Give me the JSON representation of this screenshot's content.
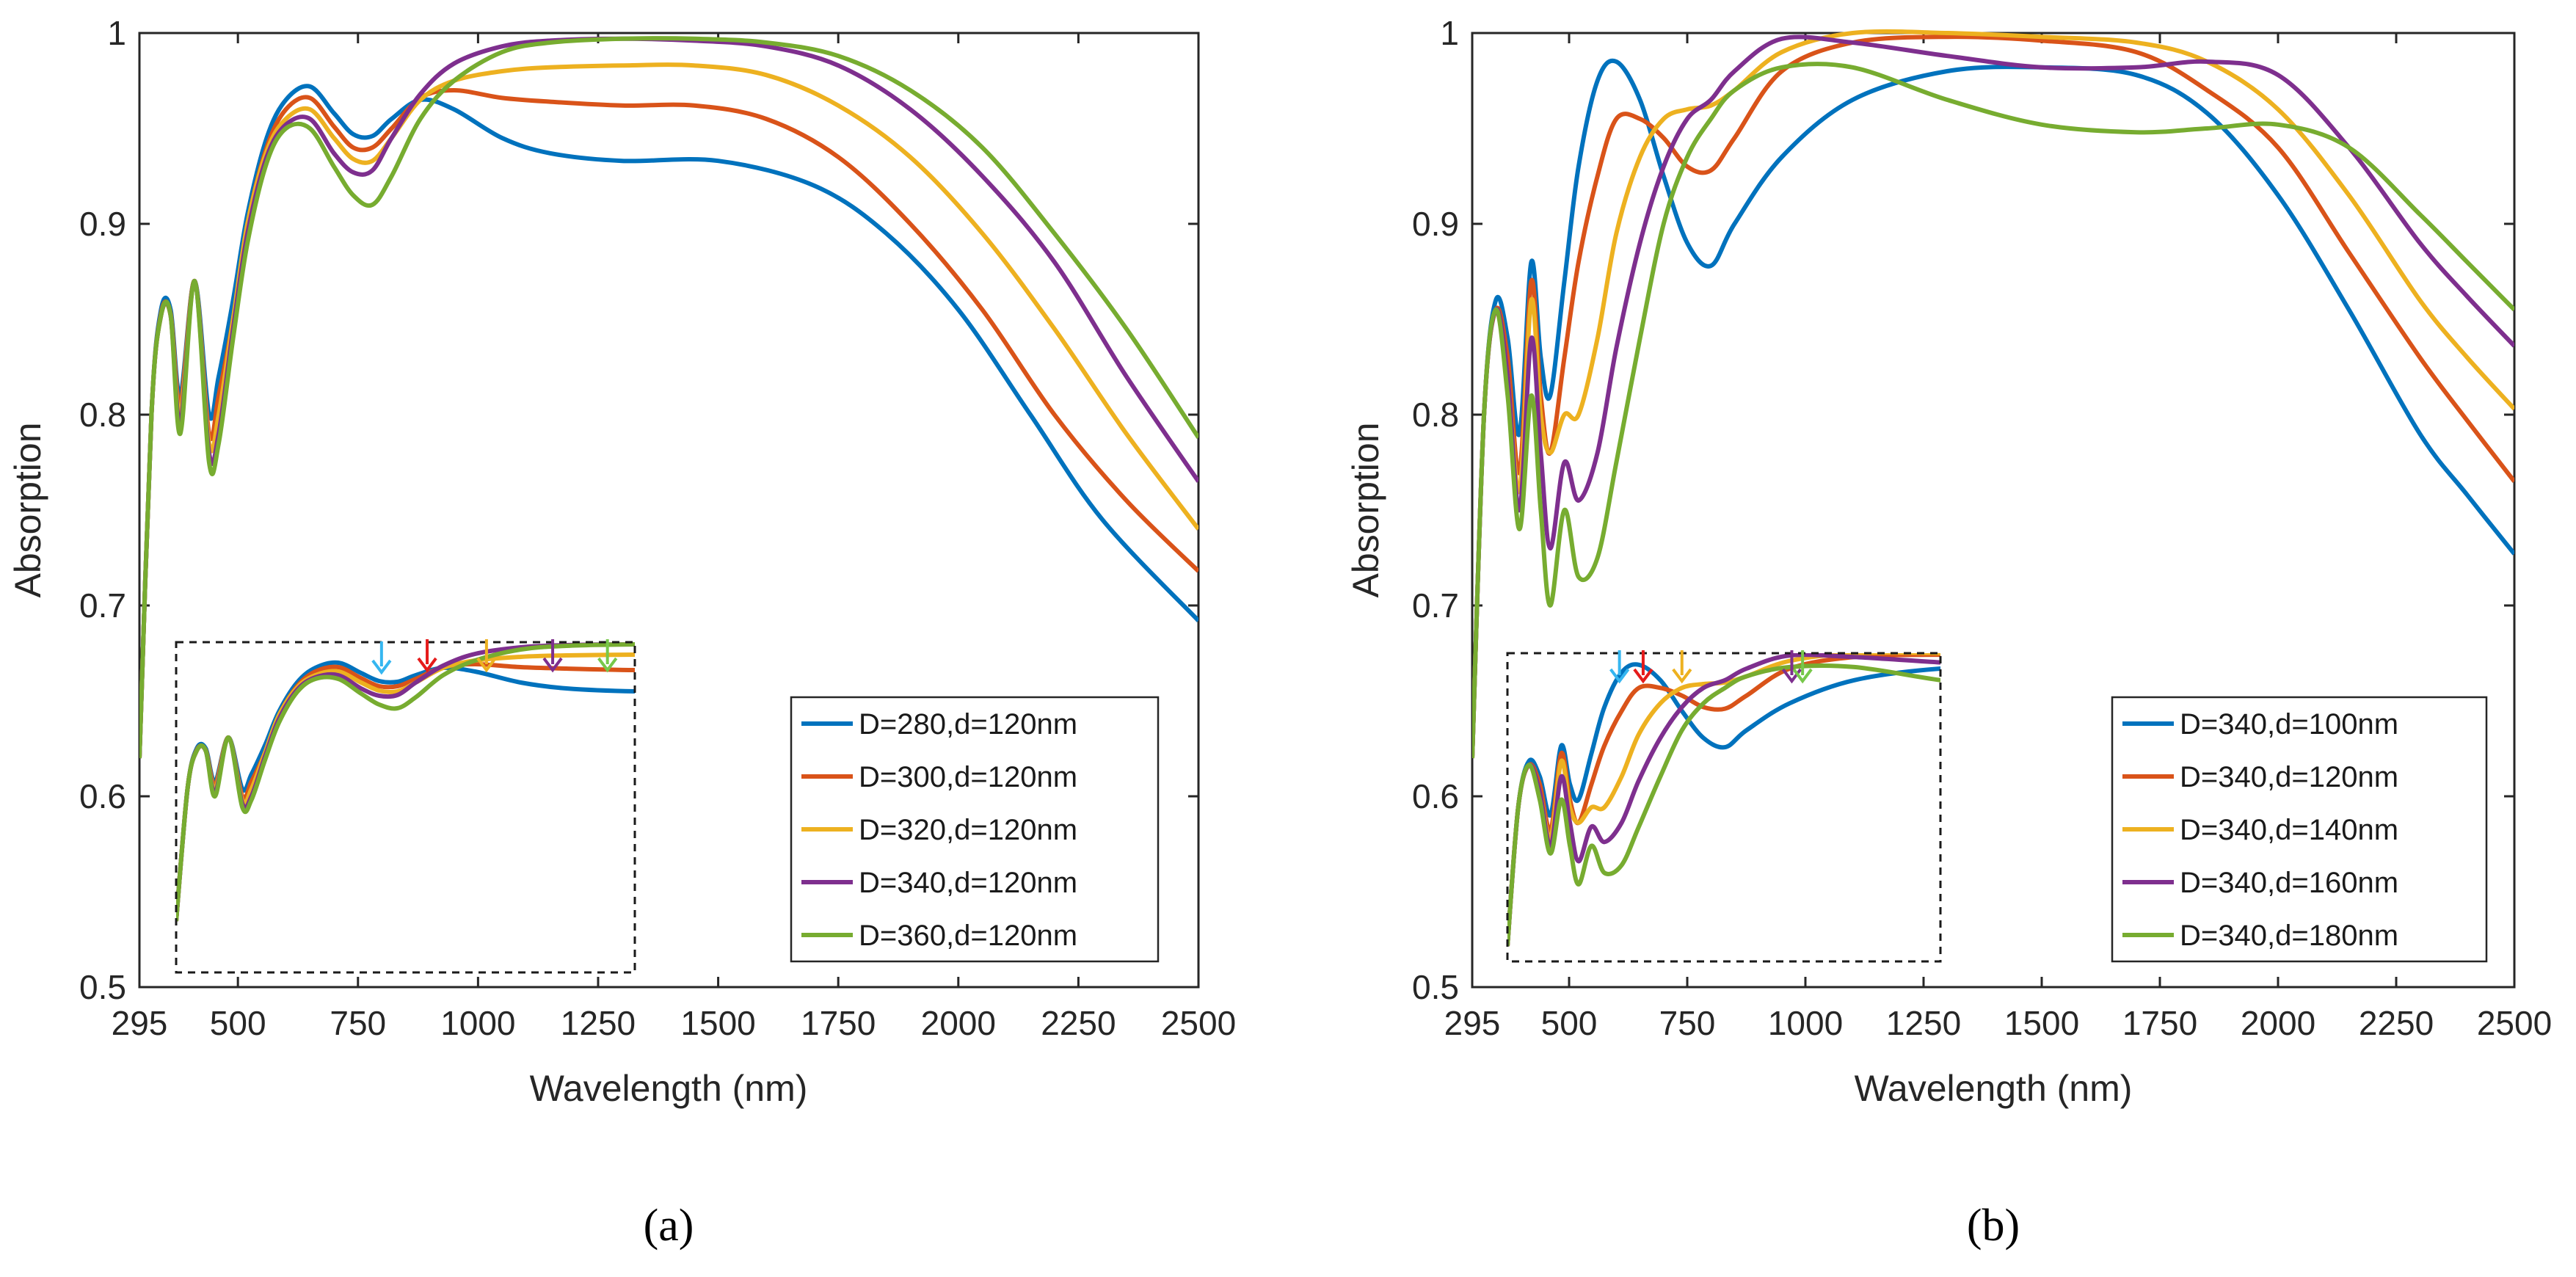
{
  "colors": [
    "#0072BD",
    "#D95319",
    "#EDB120",
    "#7E2F8E",
    "#77AC30"
  ],
  "chart_data": [
    {
      "type": "line",
      "panel": "a",
      "caption": "(a)",
      "xlabel": "Wavelength (nm)",
      "ylabel": "Absorption",
      "xlim": [
        295,
        2500
      ],
      "ylim": [
        0.5,
        1.0
      ],
      "xticks": [
        295,
        500,
        750,
        1000,
        1250,
        1500,
        1750,
        2000,
        2250,
        2500
      ],
      "xtick_labels": [
        "295",
        "500",
        "750",
        "1000",
        "1250",
        "1500",
        "1750",
        "2000",
        "2250",
        "2500"
      ],
      "yticks": [
        0.5,
        0.6,
        0.7,
        0.8,
        0.9,
        1.0
      ],
      "ytick_labels": [
        "0.5",
        "0.6",
        "0.7",
        "0.8",
        "0.9",
        "1"
      ],
      "legend_position": "bottom-right",
      "inset": "dashed zoom box with arrows marking each curve's peak",
      "inset_arrow_colors": [
        "#35B6F0",
        "#E51B1B",
        "#EDB120",
        "#7E2F8E",
        "#77C84A"
      ],
      "series": [
        {
          "name": "D=280,d=120nm",
          "x": [
            295,
            320,
            340,
            360,
            380,
            410,
            440,
            460,
            490,
            520,
            560,
            600,
            650,
            700,
            740,
            780,
            820,
            880,
            950,
            1050,
            1150,
            1300,
            1500,
            1700,
            1850,
            2000,
            2150,
            2300,
            2500
          ],
          "y": [
            0.62,
            0.8,
            0.855,
            0.855,
            0.81,
            0.87,
            0.8,
            0.82,
            0.86,
            0.905,
            0.945,
            0.965,
            0.972,
            0.958,
            0.947,
            0.946,
            0.955,
            0.965,
            0.96,
            0.945,
            0.937,
            0.933,
            0.933,
            0.92,
            0.895,
            0.855,
            0.8,
            0.745,
            0.692
          ]
        },
        {
          "name": "D=300,d=120nm",
          "x": [
            295,
            320,
            340,
            360,
            380,
            410,
            440,
            460,
            490,
            520,
            560,
            600,
            650,
            700,
            740,
            780,
            820,
            880,
            950,
            1050,
            1150,
            1300,
            1450,
            1600,
            1750,
            1900,
            2050,
            2200,
            2350,
            2500
          ],
          "y": [
            0.62,
            0.8,
            0.853,
            0.853,
            0.805,
            0.87,
            0.79,
            0.81,
            0.85,
            0.9,
            0.94,
            0.96,
            0.966,
            0.951,
            0.94,
            0.94,
            0.95,
            0.966,
            0.97,
            0.966,
            0.964,
            0.962,
            0.962,
            0.955,
            0.935,
            0.9,
            0.855,
            0.8,
            0.755,
            0.718
          ]
        },
        {
          "name": "D=320,d=120nm",
          "x": [
            295,
            320,
            340,
            360,
            380,
            410,
            440,
            460,
            490,
            520,
            560,
            600,
            650,
            700,
            740,
            780,
            820,
            880,
            950,
            1050,
            1150,
            1300,
            1450,
            1600,
            1750,
            1900,
            2050,
            2200,
            2350,
            2500
          ],
          "y": [
            0.62,
            0.8,
            0.852,
            0.852,
            0.8,
            0.87,
            0.785,
            0.8,
            0.85,
            0.9,
            0.938,
            0.955,
            0.96,
            0.945,
            0.934,
            0.933,
            0.945,
            0.965,
            0.975,
            0.98,
            0.982,
            0.983,
            0.983,
            0.978,
            0.962,
            0.935,
            0.895,
            0.845,
            0.79,
            0.74
          ]
        },
        {
          "name": "D=340,d=120nm",
          "x": [
            295,
            320,
            340,
            360,
            380,
            410,
            440,
            460,
            490,
            520,
            560,
            600,
            650,
            700,
            740,
            780,
            820,
            880,
            950,
            1050,
            1150,
            1300,
            1450,
            1600,
            1750,
            1900,
            2050,
            2200,
            2350,
            2500
          ],
          "y": [
            0.62,
            0.8,
            0.852,
            0.852,
            0.795,
            0.87,
            0.78,
            0.79,
            0.845,
            0.895,
            0.935,
            0.952,
            0.955,
            0.937,
            0.927,
            0.928,
            0.945,
            0.968,
            0.984,
            0.993,
            0.996,
            0.997,
            0.996,
            0.993,
            0.983,
            0.96,
            0.925,
            0.88,
            0.82,
            0.765
          ]
        },
        {
          "name": "D=360,d=120nm",
          "x": [
            295,
            320,
            340,
            360,
            380,
            410,
            440,
            460,
            490,
            520,
            560,
            600,
            650,
            700,
            740,
            780,
            820,
            880,
            950,
            1050,
            1150,
            1300,
            1450,
            1600,
            1750,
            1900,
            2050,
            2200,
            2350,
            2500
          ],
          "y": [
            0.62,
            0.8,
            0.852,
            0.852,
            0.79,
            0.87,
            0.775,
            0.785,
            0.84,
            0.89,
            0.932,
            0.95,
            0.95,
            0.93,
            0.915,
            0.91,
            0.925,
            0.955,
            0.975,
            0.99,
            0.995,
            0.997,
            0.997,
            0.995,
            0.988,
            0.97,
            0.94,
            0.895,
            0.845,
            0.788
          ]
        }
      ]
    },
    {
      "type": "line",
      "panel": "b",
      "caption": "(b)",
      "xlabel": "Wavelength (nm)",
      "ylabel": "Absorption",
      "xlim": [
        295,
        2500
      ],
      "ylim": [
        0.5,
        1.0
      ],
      "xticks": [
        295,
        500,
        750,
        1000,
        1250,
        1500,
        1750,
        2000,
        2250,
        2500
      ],
      "xtick_labels": [
        "295",
        "500",
        "750",
        "1000",
        "1250",
        "1500",
        "1750",
        "2000",
        "2250",
        "2500"
      ],
      "yticks": [
        0.5,
        0.6,
        0.7,
        0.8,
        0.9,
        1.0
      ],
      "ytick_labels": [
        "0.5",
        "0.6",
        "0.7",
        "0.8",
        "0.9",
        "1"
      ],
      "legend_position": "bottom-right",
      "inset": "dashed zoom box with arrows marking each curve's peak",
      "inset_arrow_colors": [
        "#35B6F0",
        "#E51B1B",
        "#EDB120",
        "#7E2F8E",
        "#77C84A"
      ],
      "series": [
        {
          "name": "D=340,d=100nm",
          "x": [
            295,
            320,
            345,
            370,
            395,
            420,
            440,
            460,
            490,
            520,
            560,
            600,
            650,
            700,
            750,
            800,
            850,
            950,
            1100,
            1300,
            1500,
            1700,
            1850,
            2000,
            2150,
            2300,
            2400,
            2500
          ],
          "y": [
            0.62,
            0.8,
            0.86,
            0.84,
            0.79,
            0.88,
            0.83,
            0.81,
            0.87,
            0.93,
            0.975,
            0.985,
            0.965,
            0.925,
            0.89,
            0.878,
            0.9,
            0.935,
            0.965,
            0.98,
            0.982,
            0.978,
            0.958,
            0.915,
            0.855,
            0.79,
            0.758,
            0.727
          ]
        },
        {
          "name": "D=340,d=120nm",
          "x": [
            295,
            320,
            345,
            370,
            395,
            420,
            440,
            460,
            490,
            520,
            560,
            600,
            650,
            700,
            750,
            800,
            850,
            950,
            1100,
            1300,
            1500,
            1700,
            1850,
            2000,
            2150,
            2300,
            2400,
            2500
          ],
          "y": [
            0.62,
            0.8,
            0.855,
            0.83,
            0.77,
            0.87,
            0.81,
            0.78,
            0.83,
            0.88,
            0.925,
            0.955,
            0.955,
            0.945,
            0.93,
            0.928,
            0.945,
            0.98,
            0.995,
            0.998,
            0.996,
            0.99,
            0.97,
            0.94,
            0.885,
            0.83,
            0.797,
            0.765
          ]
        },
        {
          "name": "D=340,d=140nm",
          "x": [
            295,
            320,
            345,
            370,
            395,
            420,
            440,
            460,
            490,
            520,
            560,
            600,
            650,
            700,
            750,
            800,
            850,
            950,
            1100,
            1300,
            1500,
            1700,
            1850,
            2000,
            2150,
            2300,
            2400,
            2500
          ],
          "y": [
            0.62,
            0.8,
            0.855,
            0.82,
            0.76,
            0.86,
            0.8,
            0.78,
            0.8,
            0.8,
            0.84,
            0.895,
            0.935,
            0.955,
            0.96,
            0.962,
            0.97,
            0.99,
            1.0,
            1.0,
            0.998,
            0.995,
            0.985,
            0.96,
            0.915,
            0.86,
            0.83,
            0.803
          ]
        },
        {
          "name": "D=340,d=160nm",
          "x": [
            295,
            320,
            345,
            370,
            395,
            420,
            440,
            460,
            490,
            520,
            560,
            600,
            650,
            700,
            750,
            800,
            850,
            950,
            1100,
            1300,
            1500,
            1700,
            1850,
            2000,
            2150,
            2300,
            2400,
            2500
          ],
          "y": [
            0.62,
            0.8,
            0.855,
            0.82,
            0.75,
            0.84,
            0.78,
            0.73,
            0.775,
            0.755,
            0.78,
            0.835,
            0.89,
            0.93,
            0.955,
            0.965,
            0.98,
            0.997,
            0.995,
            0.988,
            0.982,
            0.982,
            0.985,
            0.978,
            0.94,
            0.89,
            0.862,
            0.836
          ]
        },
        {
          "name": "D=340,d=180nm",
          "x": [
            295,
            320,
            345,
            370,
            395,
            420,
            440,
            460,
            490,
            520,
            560,
            600,
            650,
            700,
            750,
            800,
            850,
            950,
            1100,
            1300,
            1500,
            1700,
            1850,
            2000,
            2150,
            2300,
            2400,
            2500
          ],
          "y": [
            0.62,
            0.8,
            0.855,
            0.81,
            0.74,
            0.81,
            0.75,
            0.7,
            0.75,
            0.715,
            0.725,
            0.775,
            0.84,
            0.9,
            0.935,
            0.955,
            0.97,
            0.982,
            0.982,
            0.965,
            0.952,
            0.948,
            0.95,
            0.952,
            0.94,
            0.905,
            0.88,
            0.855
          ]
        }
      ]
    }
  ]
}
